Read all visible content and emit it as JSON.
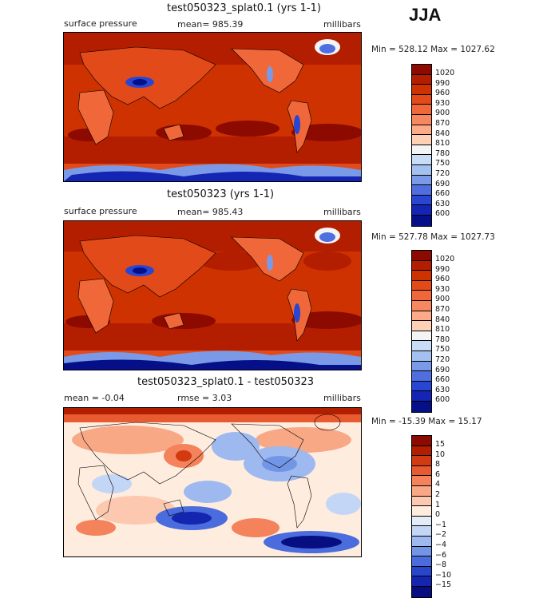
{
  "season": "JJA",
  "panels": [
    {
      "title": "test050323_splat0.1 (yrs 1-1)",
      "left_label": "surface pressure",
      "center_label": "mean= 985.39",
      "units": "millibars",
      "minmax": "Min = 528.12 Max = 1027.62",
      "colorbar": {
        "labels": [
          "1020",
          "990",
          "960",
          "930",
          "900",
          "870",
          "840",
          "810",
          "780",
          "750",
          "720",
          "690",
          "660",
          "630",
          "600"
        ],
        "colors": [
          "#8c0a00",
          "#b31d00",
          "#cd3200",
          "#e24a1a",
          "#f0673a",
          "#f7875f",
          "#fcaa87",
          "#fed0b6",
          "#f4f4f4",
          "#c8dcf5",
          "#a3c0f0",
          "#7a9ae8",
          "#4f6fe0",
          "#2946d2",
          "#1424b4",
          "#050f88"
        ]
      }
    },
    {
      "title": "test050323 (yrs 1-1)",
      "left_label": "surface pressure",
      "center_label": "mean= 985.43",
      "units": "millibars",
      "minmax": "Min = 527.78 Max = 1027.73",
      "colorbar": {
        "labels": [
          "1020",
          "990",
          "960",
          "930",
          "900",
          "870",
          "840",
          "810",
          "780",
          "750",
          "720",
          "690",
          "660",
          "630",
          "600"
        ],
        "colors": [
          "#8c0a00",
          "#b31d00",
          "#cd3200",
          "#e24a1a",
          "#f0673a",
          "#f7875f",
          "#fcaa87",
          "#fed0b6",
          "#f4f4f4",
          "#c8dcf5",
          "#a3c0f0",
          "#7a9ae8",
          "#4f6fe0",
          "#2946d2",
          "#1424b4",
          "#050f88"
        ]
      }
    },
    {
      "title": "test050323_splat0.1 - test050323",
      "left_label": "mean =   -0.04",
      "center_label": "rmse =    3.03",
      "units": "millibars",
      "minmax": "Min = -15.39 Max =  15.17",
      "colorbar": {
        "labels": [
          "15",
          "10",
          "8",
          "6",
          "4",
          "2",
          "1",
          "0",
          "−1",
          "−2",
          "−4",
          "−6",
          "−8",
          "−10",
          "−15"
        ],
        "colors": [
          "#8c0a00",
          "#b31d00",
          "#d23a12",
          "#e85a30",
          "#f4825a",
          "#f9a886",
          "#fcc9b0",
          "#feecdf",
          "#e3edfa",
          "#c3d6f5",
          "#9db9ef",
          "#7295e6",
          "#4a6cdc",
          "#2746cc",
          "#1426b0",
          "#060e82"
        ]
      }
    }
  ]
}
